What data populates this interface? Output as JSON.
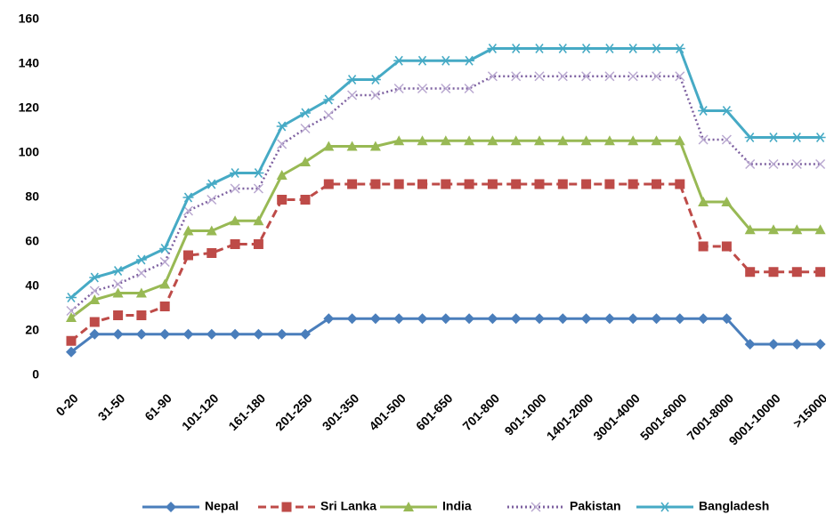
{
  "chart_data": {
    "type": "line",
    "categories": [
      "0-20",
      null,
      "31-50",
      null,
      "61-90",
      null,
      "101-120",
      null,
      "161-180",
      null,
      "201-250",
      null,
      "301-350",
      null,
      "401-500",
      null,
      "601-650",
      null,
      "701-800",
      null,
      "901-1000",
      null,
      "1401-2000",
      null,
      "3001-4000",
      null,
      "5001-6000",
      null,
      "7001-8000",
      null,
      "9001-10000",
      null,
      ">15000"
    ],
    "ylim": [
      0,
      160
    ],
    "yticks": [
      0,
      20,
      40,
      60,
      80,
      100,
      120,
      140,
      160
    ],
    "legend": "bottom",
    "grid": false,
    "series": [
      {
        "name": "Nepal",
        "color": "#4a7ebb",
        "marker": "diamond",
        "dash": "solid",
        "values": [
          10.5,
          18.5,
          18.5,
          18.5,
          18.5,
          18.5,
          18.5,
          18.5,
          18.5,
          18.5,
          18.5,
          25.5,
          25.5,
          25.5,
          25.5,
          25.5,
          25.5,
          25.5,
          25.5,
          25.5,
          25.5,
          25.5,
          25.5,
          25.5,
          25.5,
          25.5,
          25.5,
          25.5,
          25.5,
          14,
          14,
          14,
          14
        ]
      },
      {
        "name": "Sri Lanka",
        "color": "#be4b48",
        "marker": "square",
        "dash": "dashed",
        "values": [
          15.5,
          24,
          27,
          27,
          31,
          54,
          55,
          59,
          59,
          79,
          79,
          86,
          86,
          86,
          86,
          86,
          86,
          86,
          86,
          86,
          86,
          86,
          86,
          86,
          86,
          86,
          86,
          58,
          58,
          46.5,
          46.5,
          46.5,
          46.5
        ]
      },
      {
        "name": "India",
        "color": "#98b954",
        "marker": "triangle",
        "dash": "solid",
        "values": [
          26,
          34,
          37,
          37,
          41,
          65,
          65,
          69.5,
          69.5,
          90,
          96,
          103,
          103,
          103,
          105.5,
          105.5,
          105.5,
          105.5,
          105.5,
          105.5,
          105.5,
          105.5,
          105.5,
          105.5,
          105.5,
          105.5,
          105.5,
          78,
          78,
          65.5,
          65.5,
          65.5,
          65.5
        ]
      },
      {
        "name": "Pakistan",
        "color": "#7d60a0",
        "marker": "x",
        "dash": "dotted",
        "values": [
          29,
          38,
          41,
          46,
          51,
          74,
          79,
          84,
          84,
          104,
          111,
          117,
          126,
          126,
          129,
          129,
          129,
          129,
          134.5,
          134.5,
          134.5,
          134.5,
          134.5,
          134.5,
          134.5,
          134.5,
          134.5,
          106,
          106,
          95,
          95,
          95,
          95
        ]
      },
      {
        "name": "Bangladesh",
        "color": "#46aac5",
        "marker": "star",
        "dash": "solid",
        "values": [
          35,
          44,
          47,
          52,
          57,
          80,
          86,
          91,
          91,
          112,
          118,
          124,
          133,
          133,
          141.5,
          141.5,
          141.5,
          141.5,
          147,
          147,
          147,
          147,
          147,
          147,
          147,
          147,
          147,
          119,
          119,
          107,
          107,
          107,
          107
        ]
      }
    ]
  }
}
